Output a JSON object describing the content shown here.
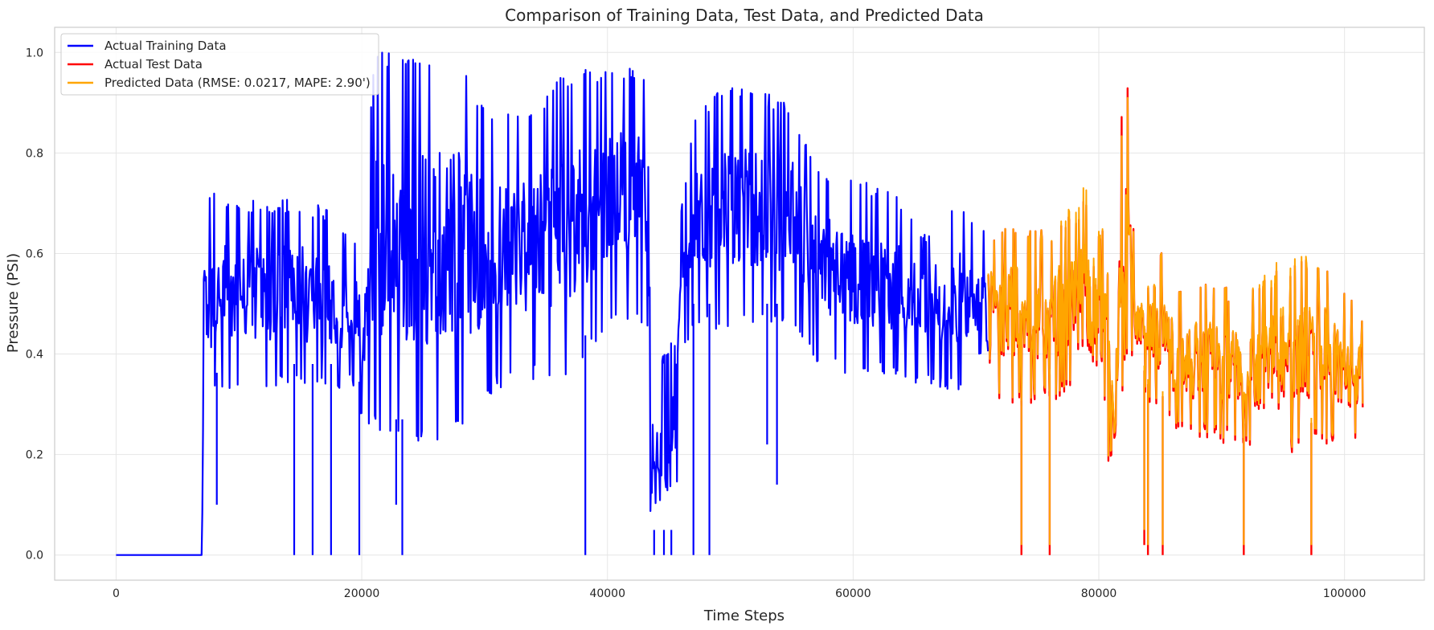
{
  "chart_data": {
    "type": "line",
    "title": "Comparison of Training Data, Test Data, and Predicted Data",
    "xlabel": "Time Steps",
    "ylabel": "Pressure (PSI)",
    "xlim": [
      -5000,
      106500
    ],
    "ylim": [
      -0.05,
      1.05
    ],
    "xticks": [
      0,
      20000,
      40000,
      60000,
      80000,
      100000
    ],
    "xtick_labels": [
      "0",
      "20000",
      "40000",
      "60000",
      "80000",
      "100000"
    ],
    "yticks": [
      0.0,
      0.2,
      0.4,
      0.6,
      0.8,
      1.0
    ],
    "ytick_labels": [
      "0.0",
      "0.2",
      "0.4",
      "0.6",
      "0.8",
      "1.0"
    ],
    "grid": true,
    "legend_position": "top-left",
    "legend": [
      {
        "label": "Actual Training Data",
        "color": "#0000ff"
      },
      {
        "label": "Actual Test Data",
        "color": "#ff0000"
      },
      {
        "label": "Predicted Data (RMSE: 0.0217, MAPE: 2.90')",
        "color": "#ffa500"
      }
    ],
    "series": [
      {
        "name": "Actual Training Data",
        "color": "#0000ff",
        "envelope": {
          "x": [
            0,
            7000,
            7100,
            8000,
            9500,
            12000,
            15000,
            17500,
            19600,
            20000,
            21000,
            22000,
            25000,
            28000,
            29000,
            31000,
            34000,
            36000,
            38000,
            40000,
            42000,
            43300,
            43500,
            45500,
            46000,
            47000,
            49000,
            52000,
            55000,
            57000,
            59000,
            62000,
            64500,
            65500,
            68000,
            71000
          ],
          "high": [
            0,
            0,
            0.69,
            0.74,
            0.71,
            0.71,
            0.71,
            0.69,
            0.62,
            0.62,
            1.0,
            1.0,
            1.0,
            1.0,
            0.92,
            0.88,
            0.88,
            0.95,
            0.97,
            0.97,
            0.97,
            0.96,
            0.35,
            0.44,
            0.7,
            0.86,
            0.93,
            0.93,
            0.9,
            0.78,
            0.76,
            0.74,
            0.71,
            0.64,
            0.71,
            0.64
          ],
          "low": [
            0,
            0,
            0.29,
            0.31,
            0.33,
            0.33,
            0.33,
            0.33,
            0.33,
            0.26,
            0.25,
            0.22,
            0.22,
            0.24,
            0.28,
            0.33,
            0.35,
            0.35,
            0.38,
            0.45,
            0.45,
            0.45,
            0.0,
            0.0,
            0.4,
            0.45,
            0.45,
            0.45,
            0.45,
            0.38,
            0.36,
            0.36,
            0.33,
            0.33,
            0.33,
            0.29
          ]
        },
        "spikes": [
          [
            8200,
            0.1
          ],
          [
            14500,
            0.0
          ],
          [
            16000,
            0.0
          ],
          [
            17500,
            0.0
          ],
          [
            19800,
            0.0
          ],
          [
            22800,
            0.1
          ],
          [
            23300,
            0.0
          ],
          [
            38200,
            0.0
          ],
          [
            43800,
            0.0
          ],
          [
            44600,
            0.0
          ],
          [
            45200,
            0.0
          ],
          [
            47000,
            0.0
          ],
          [
            48300,
            0.0
          ],
          [
            53000,
            0.22
          ],
          [
            53800,
            0.14
          ]
        ]
      },
      {
        "name": "Actual Test Data",
        "color": "#ff0000",
        "envelope": {
          "x": [
            71000,
            73000,
            76000,
            79000,
            80500,
            81300,
            82000,
            82300,
            83000,
            84000,
            85000,
            86500,
            89000,
            92000,
            95000,
            98000,
            101500
          ],
          "high": [
            0.65,
            0.67,
            0.64,
            0.71,
            0.64,
            0.36,
            1.0,
            0.97,
            0.55,
            0.64,
            0.62,
            0.53,
            0.55,
            0.52,
            0.58,
            0.6,
            0.48
          ],
          "low": [
            0.29,
            0.29,
            0.31,
            0.31,
            0.19,
            0.17,
            0.34,
            0.4,
            0.38,
            0.29,
            0.27,
            0.24,
            0.23,
            0.21,
            0.19,
            0.22,
            0.22
          ]
        },
        "spikes": [
          [
            73700,
            0.0
          ],
          [
            76000,
            0.0
          ],
          [
            83700,
            0.02
          ],
          [
            84000,
            0.0
          ],
          [
            85200,
            0.0
          ],
          [
            91800,
            0.0
          ],
          [
            97300,
            0.0
          ]
        ]
      },
      {
        "name": "Predicted Data (RMSE: 0.0217, MAPE: 2.90')",
        "color": "#ffa500",
        "envelope": {
          "x": [
            71000,
            73000,
            76000,
            79000,
            80500,
            81300,
            82000,
            82300,
            83000,
            84000,
            85000,
            86500,
            89000,
            92000,
            95000,
            98000,
            101500
          ],
          "high": [
            0.65,
            0.67,
            0.64,
            0.74,
            0.64,
            0.37,
            0.95,
            0.95,
            0.55,
            0.64,
            0.62,
            0.53,
            0.55,
            0.52,
            0.6,
            0.6,
            0.48
          ],
          "low": [
            0.3,
            0.3,
            0.32,
            0.32,
            0.2,
            0.18,
            0.35,
            0.41,
            0.39,
            0.3,
            0.28,
            0.25,
            0.24,
            0.22,
            0.2,
            0.23,
            0.23
          ]
        },
        "spikes": [
          [
            73700,
            0.02
          ],
          [
            76000,
            0.02
          ],
          [
            83700,
            0.05
          ],
          [
            84000,
            0.02
          ],
          [
            85200,
            0.02
          ],
          [
            91800,
            0.02
          ],
          [
            97300,
            0.02
          ]
        ]
      }
    ]
  }
}
